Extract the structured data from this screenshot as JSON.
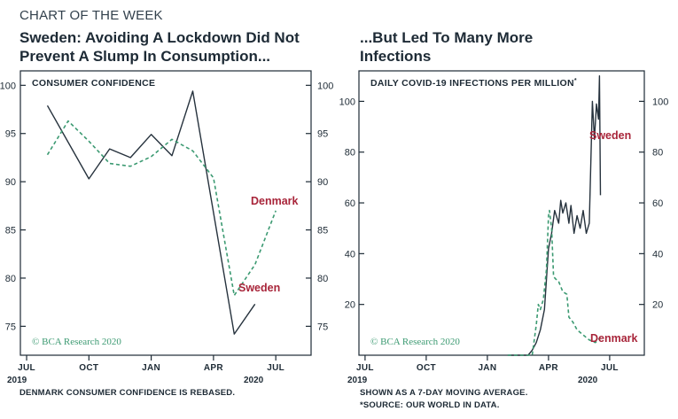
{
  "header": {
    "kicker": "CHART OF THE WEEK",
    "left_title_1": "Sweden: Avoiding A Lockdown Did Not",
    "left_title_2": "Prevent A Slump In Consumption...",
    "right_title_1": "...But Led To Many More",
    "right_title_2": "Infections"
  },
  "footer": {
    "left_note": "DENMARK CONSUMER CONFIDENCE IS REBASED.",
    "right_note_1": "SHOWN AS A 7-DAY MOVING AVERAGE.",
    "right_note_2": "*SOURCE: OUR WORLD IN DATA."
  },
  "colors": {
    "sweden": "#26323d",
    "denmark": "#3c9a72",
    "label_red": "#a8253a"
  },
  "chart_data": [
    {
      "type": "line",
      "panel_title": "CONSUMER CONFIDENCE",
      "source": "© BCA Research 2020",
      "x_ticks": [
        "JUL",
        "OCT",
        "JAN",
        "APR",
        "JUL"
      ],
      "year_labels": [
        "2019",
        "2020"
      ],
      "y_ticks": [
        75,
        80,
        85,
        90,
        95,
        100
      ],
      "ylim": [
        72,
        101.5
      ],
      "x_units": "months since Jul 2019",
      "xlim": [
        -0.3,
        13.7
      ],
      "grid": false,
      "series": [
        {
          "name": "Sweden",
          "style": "solid",
          "x": [
            1,
            3,
            4,
            5,
            6,
            7,
            8,
            10,
            11
          ],
          "y": [
            97.9,
            90.3,
            93.4,
            92.5,
            94.9,
            92.7,
            99.4,
            74.2,
            77.3
          ]
        },
        {
          "name": "Denmark",
          "style": "dashed",
          "x": [
            1,
            2,
            3,
            4,
            5,
            6,
            7,
            8,
            9,
            10,
            11,
            12
          ],
          "y": [
            92.8,
            96.3,
            94.2,
            91.9,
            91.6,
            92.6,
            94.4,
            93.2,
            90.4,
            78.2,
            81.4,
            87.0
          ]
        }
      ]
    },
    {
      "type": "line",
      "panel_title": "DAILY COVID-19 INFECTIONS PER MILLION",
      "panel_title_mark": "*",
      "source": "© BCA Research 2020",
      "x_ticks": [
        "JUL",
        "OCT",
        "JAN",
        "APR",
        "JUL"
      ],
      "year_labels": [
        "2019",
        "2020"
      ],
      "y_ticks": [
        20,
        40,
        60,
        80,
        100
      ],
      "ylim": [
        0,
        112
      ],
      "x_units": "months since Jul 2019",
      "xlim": [
        -0.3,
        13.7
      ],
      "grid": false,
      "series": [
        {
          "name": "Sweden",
          "style": "solid",
          "x": [
            7.0,
            8.0,
            8.2,
            8.4,
            8.6,
            8.8,
            8.9,
            9.0,
            9.15,
            9.3,
            9.5,
            9.6,
            9.7,
            9.85,
            10.0,
            10.1,
            10.25,
            10.4,
            10.55,
            10.7,
            10.85,
            11.0,
            11.15,
            11.25,
            11.35,
            11.45,
            11.5,
            11.55
          ],
          "y": [
            0,
            0,
            2,
            5,
            10,
            18,
            30,
            42,
            48,
            57,
            52,
            61,
            56,
            60,
            52,
            59,
            48,
            55,
            50,
            57,
            48,
            52,
            100,
            85,
            99,
            93,
            110,
            63
          ]
        },
        {
          "name": "Denmark",
          "style": "dashed",
          "x": [
            7.0,
            8.2,
            8.4,
            8.5,
            8.6,
            8.75,
            8.9,
            9.0,
            9.05,
            9.15,
            9.25,
            9.35,
            9.5,
            9.7,
            9.9,
            10.0,
            10.2,
            10.4,
            10.7,
            11.0,
            11.3,
            11.55
          ],
          "y": [
            0,
            0,
            12,
            20,
            18,
            22,
            34,
            55,
            57,
            50,
            31,
            30,
            29,
            25,
            24,
            15,
            13,
            10,
            8,
            6,
            5,
            7
          ]
        }
      ]
    }
  ]
}
